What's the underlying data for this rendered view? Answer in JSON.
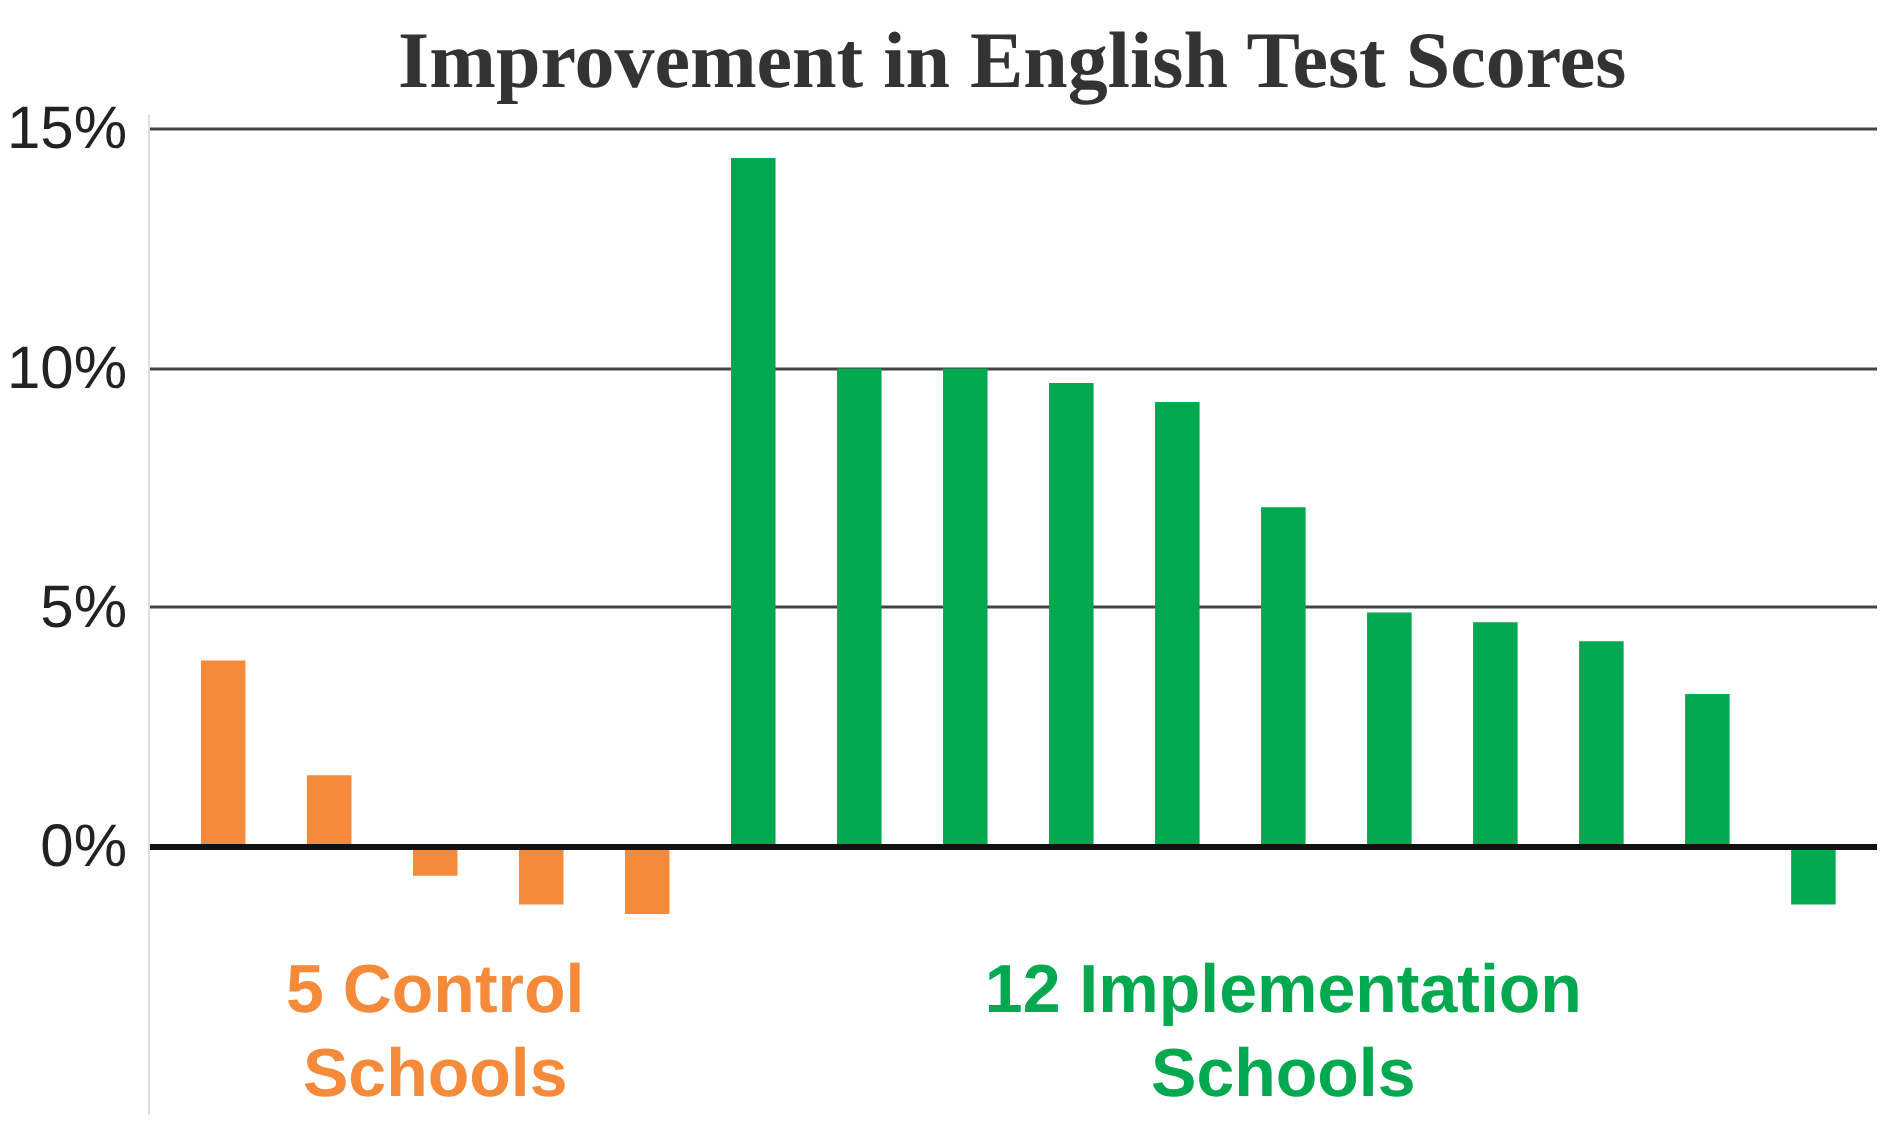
{
  "chart_data": {
    "type": "bar",
    "title": "Improvement in English Test Scores",
    "categories": [
      null,
      null,
      null,
      null,
      null,
      null,
      null,
      null,
      null,
      null,
      null,
      null,
      null,
      null,
      null,
      null
    ],
    "series": [
      {
        "name": "5 Control Schools",
        "color": "#f58a3a",
        "values": [
          3.9,
          1.5,
          -0.6,
          -1.2,
          -1.4,
          null,
          null,
          null,
          null,
          null,
          null,
          null,
          null,
          null,
          null,
          null
        ]
      },
      {
        "name": "12 Implementation Schools",
        "color": "#00a84f",
        "values": [
          null,
          null,
          null,
          null,
          null,
          14.4,
          10.0,
          10.0,
          9.7,
          9.3,
          7.1,
          4.9,
          4.7,
          4.3,
          3.2,
          -1.2
        ]
      }
    ],
    "ylim": [
      -5.6,
      15.3
    ],
    "yticks": [
      {
        "value": 0,
        "label": "0%"
      },
      {
        "value": 5,
        "label": "5%"
      },
      {
        "value": 10,
        "label": "10%"
      },
      {
        "value": 15,
        "label": "15%"
      }
    ],
    "grid": "y"
  }
}
